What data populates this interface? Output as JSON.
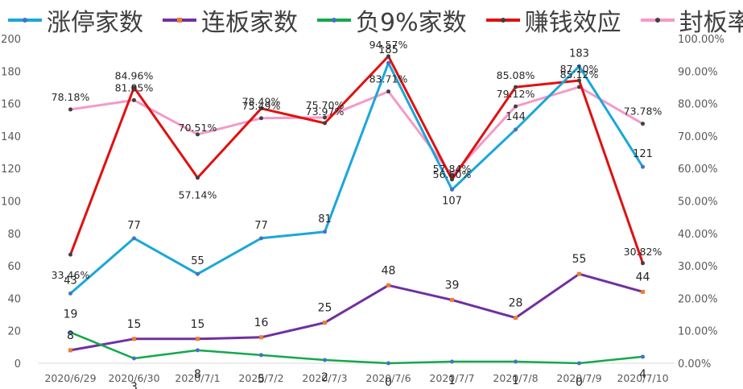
{
  "chart_data": {
    "type": "line",
    "categories": [
      "2020/6/29",
      "2020/6/30",
      "2020/7/1",
      "2020/7/2",
      "2020/7/3",
      "2020/7/6",
      "2020/7/7",
      "2020/7/8",
      "2020/7/9",
      "2020/7/10"
    ],
    "ylim": [
      0,
      200
    ],
    "y2lim": [
      0,
      100
    ],
    "y_ticks": [
      "0",
      "20",
      "40",
      "60",
      "80",
      "100",
      "120",
      "140",
      "160",
      "180",
      "200"
    ],
    "y2_ticks": [
      "0.00%",
      "10.00%",
      "20.00%",
      "30.00%",
      "40.00%",
      "50.00%",
      "60.00%",
      "70.00%",
      "80.00%",
      "90.00%",
      "100.00%"
    ],
    "grid": false,
    "legend_position": "top",
    "series": [
      {
        "name": "涨停家数",
        "axis": "left",
        "color": "#1aa7d9",
        "marker": "circle",
        "values": [
          43,
          77,
          55,
          77,
          81,
          185,
          107,
          144,
          183,
          121
        ],
        "labels": [
          "43",
          "77",
          "55",
          "77",
          "81",
          "185",
          "107",
          "144",
          "183",
          "121"
        ]
      },
      {
        "name": "连板家数",
        "axis": "left",
        "color": "#7030a0",
        "marker": "square",
        "values": [
          8,
          15,
          15,
          16,
          25,
          48,
          39,
          28,
          55,
          44
        ],
        "labels": [
          "8",
          "15",
          "15",
          "16",
          "25",
          "48",
          "39",
          "28",
          "55",
          "44"
        ]
      },
      {
        "name": "负9%家数",
        "axis": "left",
        "color": "#13a84c",
        "marker": "circle",
        "values": [
          19,
          3,
          8,
          5,
          2,
          0,
          1,
          1,
          0,
          4
        ],
        "labels": [
          "19",
          "3",
          "8",
          "5",
          "2",
          "0",
          "1",
          "1",
          "0",
          "4"
        ]
      },
      {
        "name": "赚钱效应",
        "axis": "right",
        "color": "#e01010",
        "marker": "circle",
        "values": [
          33.46,
          84.96,
          57.14,
          78.49,
          73.97,
          94.57,
          56.6,
          85.08,
          87.1,
          30.82
        ],
        "labels": [
          "33.46%",
          "84.96%",
          "57.14%",
          "78.49%",
          "73.97%",
          "94.57%",
          "56.60%",
          "85.08%",
          "87.10%",
          "30.82%"
        ]
      },
      {
        "name": "封板率",
        "axis": "right",
        "color": "#f49ac8",
        "marker": "circle",
        "values": [
          78.18,
          81.05,
          70.51,
          75.49,
          75.7,
          83.71,
          57.84,
          79.12,
          85.12,
          73.78
        ],
        "labels": [
          "78.18%",
          "81.05%",
          "70.51%",
          "75.49%",
          "75.70%",
          "83.71%",
          "57.84%",
          "79.12%",
          "85.12%",
          "73.78%"
        ]
      }
    ]
  }
}
